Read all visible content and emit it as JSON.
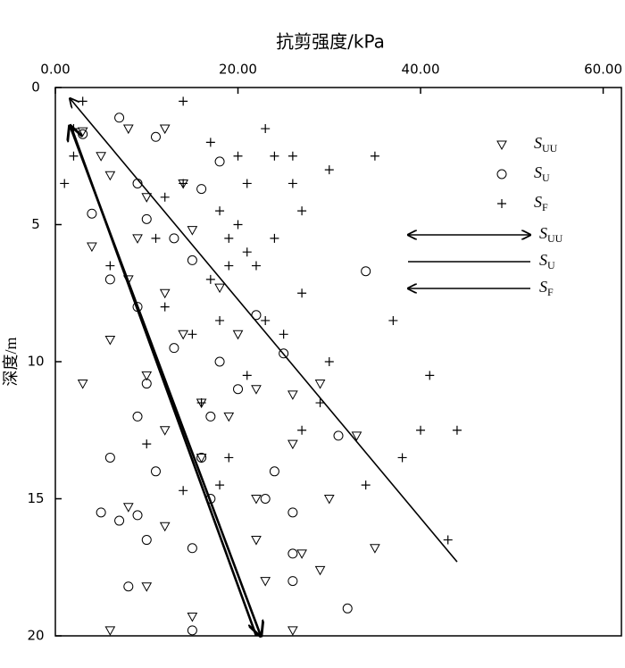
{
  "chart_data": {
    "type": "scatter",
    "x_label": "抗剪强度/kPa",
    "y_label": "深度/m",
    "xlim": [
      0,
      62
    ],
    "ylim": [
      0,
      20
    ],
    "y_inverted": true,
    "x_axis_position": "top",
    "xticks": [
      {
        "value": 0,
        "label": "0.00"
      },
      {
        "value": 20,
        "label": "20.00"
      },
      {
        "value": 40,
        "label": "40.00"
      },
      {
        "value": 60,
        "label": "60.00"
      }
    ],
    "yticks": [
      0,
      5,
      10,
      15,
      20
    ],
    "series": [
      {
        "label_main": "S",
        "label_sub": "UU",
        "marker": "triangle",
        "color": "#000000",
        "x": [
          3,
          5,
          8,
          12,
          6,
          10,
          14,
          4,
          9,
          15,
          8,
          12,
          18,
          6,
          14,
          20,
          10,
          16,
          22,
          26,
          29,
          12,
          19,
          26,
          33,
          16,
          22,
          30,
          8,
          12,
          22,
          35,
          10,
          23,
          29,
          15,
          26,
          6,
          3,
          27
        ],
        "y": [
          1.6,
          2.5,
          1.5,
          1.5,
          3.2,
          4,
          3.5,
          5.8,
          5.5,
          5.2,
          7,
          7.5,
          7.3,
          9.2,
          9,
          9,
          10.5,
          11.5,
          11,
          11.2,
          10.8,
          12.5,
          12,
          13,
          12.7,
          13.5,
          15,
          15,
          15.3,
          16,
          16.5,
          16.8,
          18.2,
          18,
          17.6,
          19.3,
          19.8,
          19.8,
          10.8,
          17
        ]
      },
      {
        "label_main": "S",
        "label_sub": "U",
        "marker": "circle",
        "color": "#000000",
        "x": [
          7,
          11,
          3,
          18,
          9,
          16,
          4,
          10,
          13,
          6,
          15,
          34,
          9,
          22,
          13,
          25,
          18,
          10,
          20,
          9,
          17,
          31,
          6,
          16,
          24,
          11,
          17,
          23,
          26,
          5,
          9,
          10,
          15,
          26,
          8,
          26,
          32,
          15,
          7
        ],
        "y": [
          1.1,
          1.8,
          1.7,
          2.7,
          3.5,
          3.7,
          4.6,
          4.8,
          5.5,
          7,
          6.3,
          6.7,
          8,
          8.3,
          9.5,
          9.7,
          10,
          10.8,
          11,
          12,
          12,
          12.7,
          13.5,
          13.5,
          14,
          14,
          15,
          15,
          15.5,
          15.5,
          15.6,
          16.5,
          16.8,
          17,
          18.2,
          18,
          19,
          19.8,
          15.8
        ]
      },
      {
        "label_main": "S",
        "label_sub": "F",
        "marker": "plus",
        "color": "#000000",
        "x": [
          3,
          14,
          2,
          23,
          17,
          2,
          20,
          24,
          26,
          35,
          30,
          1,
          14,
          21,
          26,
          12,
          18,
          27,
          20,
          11,
          19,
          24,
          21,
          6,
          19,
          22,
          17,
          27,
          12,
          18,
          23,
          37,
          15,
          25,
          30,
          21,
          41,
          16,
          29,
          40,
          44,
          10,
          27,
          38,
          19,
          34,
          18,
          43,
          14
        ],
        "y": [
          0.5,
          0.5,
          1.5,
          1.5,
          2,
          2.5,
          2.5,
          2.5,
          2.5,
          2.5,
          3,
          3.5,
          3.5,
          3.5,
          3.5,
          4,
          4.5,
          4.5,
          5,
          5.5,
          5.5,
          5.5,
          6,
          6.5,
          6.5,
          6.5,
          7,
          7.5,
          8,
          8.5,
          8.5,
          8.5,
          9,
          9,
          10,
          10.5,
          10.5,
          11.5,
          11.5,
          12.5,
          12.5,
          13,
          12.5,
          13.5,
          13.5,
          14.5,
          14.5,
          16.5,
          14.7
        ]
      }
    ],
    "lines": [
      {
        "label_main": "S",
        "label_sub": "UU",
        "arrow": "both",
        "color": "#000000",
        "x": [
          1.6,
          22.5
        ],
        "y": [
          1.4,
          20
        ]
      },
      {
        "label_main": "S",
        "label_sub": "U",
        "arrow": "none",
        "color": "#000000",
        "x": [
          1.8,
          22
        ],
        "y": [
          1.5,
          20
        ]
      },
      {
        "label_main": "S",
        "label_sub": "F",
        "arrow": "start",
        "color": "#000000",
        "x": [
          1.6,
          44
        ],
        "y": [
          0.4,
          17.3
        ]
      }
    ]
  }
}
